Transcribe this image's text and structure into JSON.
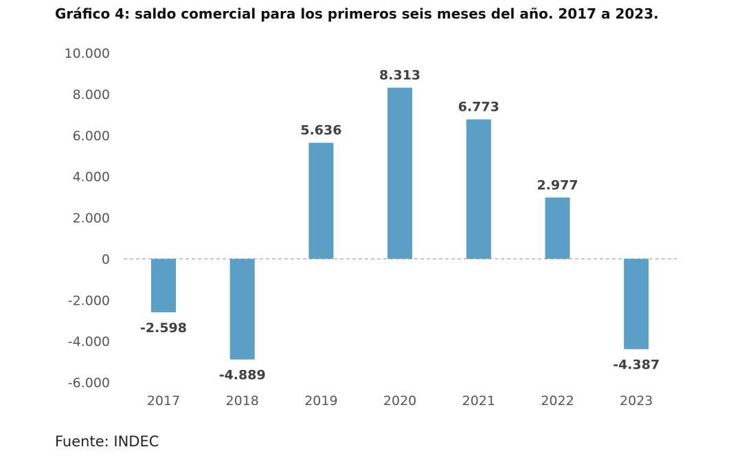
{
  "chart_data": {
    "type": "bar",
    "title": "Gráfico 4: saldo comercial para los primeros seis meses del año. 2017 a 2023.",
    "xlabel": "",
    "ylabel": "",
    "categories": [
      "2017",
      "2018",
      "2019",
      "2020",
      "2021",
      "2022",
      "2023"
    ],
    "values": [
      -2598,
      -4889,
      5636,
      8313,
      6773,
      2977,
      -4387
    ],
    "value_labels": [
      "-2.598",
      "-4.889",
      "5.636",
      "8.313",
      "6.773",
      "2.977",
      "-4.387"
    ],
    "ylim": [
      -6000,
      10000
    ],
    "yticks": [
      10000,
      8000,
      6000,
      4000,
      2000,
      0,
      -2000,
      -4000,
      -6000
    ],
    "ytick_labels": [
      "10.000",
      "8.000",
      "6.000",
      "4.000",
      "2.000",
      "0",
      "-2.000",
      "-4.000",
      "-6.000"
    ],
    "bar_color": "#5b9ec6",
    "zero_line": "dashed",
    "grid": false,
    "legend": "none"
  },
  "source": "Fuente: INDEC"
}
